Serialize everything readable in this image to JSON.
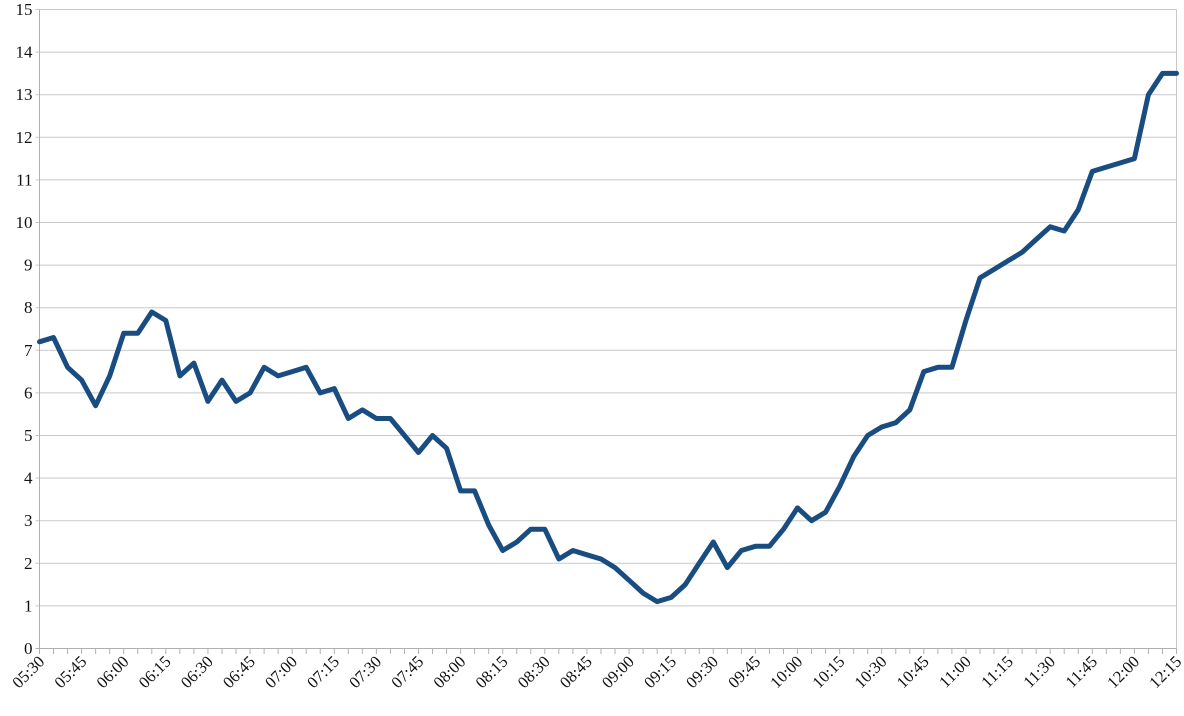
{
  "chart_data": {
    "type": "line",
    "title": "",
    "legend": "none",
    "grid": "horizontal",
    "background": "#ffffff",
    "line_color": "#194C80",
    "grid_color": "#c9c9c9",
    "axis_color": "#b0b0b0",
    "text_color": "#111111",
    "ylim": [
      0,
      15
    ],
    "y_tick_labels": [
      "0",
      "1",
      "2",
      "3",
      "4",
      "5",
      "6",
      "7",
      "8",
      "9",
      "10",
      "11",
      "12",
      "13",
      "14",
      "15"
    ],
    "x_tick_labels": [
      "05:30",
      "05:45",
      "06:00",
      "06:15",
      "06:30",
      "06:45",
      "07:00",
      "07:15",
      "07:30",
      "07:45",
      "08:00",
      "08:15",
      "08:30",
      "08:45",
      "09:00",
      "09:15",
      "09:30",
      "09:45",
      "10:00",
      "10:15",
      "10:30",
      "10:45",
      "11:00",
      "11:15",
      "11:30",
      "11:45",
      "12:00",
      "12:15"
    ],
    "x_label_every_n_points": 3,
    "x": [
      "05:30",
      "05:35",
      "05:40",
      "05:45",
      "05:50",
      "05:55",
      "06:00",
      "06:05",
      "06:10",
      "06:15",
      "06:20",
      "06:25",
      "06:30",
      "06:35",
      "06:40",
      "06:45",
      "06:50",
      "06:55",
      "07:00",
      "07:05",
      "07:10",
      "07:15",
      "07:20",
      "07:25",
      "07:30",
      "07:35",
      "07:40",
      "07:45",
      "07:50",
      "07:55",
      "08:00",
      "08:05",
      "08:10",
      "08:15",
      "08:20",
      "08:25",
      "08:30",
      "08:35",
      "08:40",
      "08:45",
      "08:50",
      "08:55",
      "09:00",
      "09:05",
      "09:10",
      "09:15",
      "09:20",
      "09:25",
      "09:30",
      "09:35",
      "09:40",
      "09:45",
      "09:50",
      "09:55",
      "10:00",
      "10:05",
      "10:10",
      "10:15",
      "10:20",
      "10:25",
      "10:30",
      "10:35",
      "10:40",
      "10:45",
      "10:50",
      "10:55",
      "11:00",
      "11:05",
      "11:10",
      "11:15",
      "11:20",
      "11:25",
      "11:30",
      "11:35",
      "11:40",
      "11:45",
      "11:50",
      "11:55",
      "12:00",
      "12:05",
      "12:10",
      "12:15"
    ],
    "series": [
      {
        "name": "value",
        "values": [
          7.2,
          7.3,
          6.6,
          6.3,
          5.7,
          6.4,
          7.4,
          7.4,
          7.9,
          7.7,
          6.4,
          6.7,
          5.8,
          6.3,
          5.8,
          6.0,
          6.6,
          6.4,
          6.5,
          6.6,
          6.0,
          6.1,
          5.4,
          5.6,
          5.4,
          5.4,
          5.0,
          4.6,
          5.0,
          4.7,
          3.7,
          3.7,
          2.9,
          2.3,
          2.5,
          2.8,
          2.8,
          2.1,
          2.3,
          2.2,
          2.1,
          1.9,
          1.6,
          1.3,
          1.1,
          1.2,
          1.5,
          2.0,
          2.5,
          1.9,
          2.3,
          2.4,
          2.4,
          2.8,
          3.3,
          3.0,
          3.2,
          3.8,
          4.5,
          5.0,
          5.2,
          5.3,
          5.6,
          6.5,
          6.6,
          6.6,
          7.7,
          8.7,
          8.9,
          9.1,
          9.3,
          9.6,
          9.9,
          9.8,
          10.3,
          11.2,
          11.3,
          11.4,
          11.5,
          13.0,
          13.5,
          13.5
        ]
      }
    ]
  }
}
